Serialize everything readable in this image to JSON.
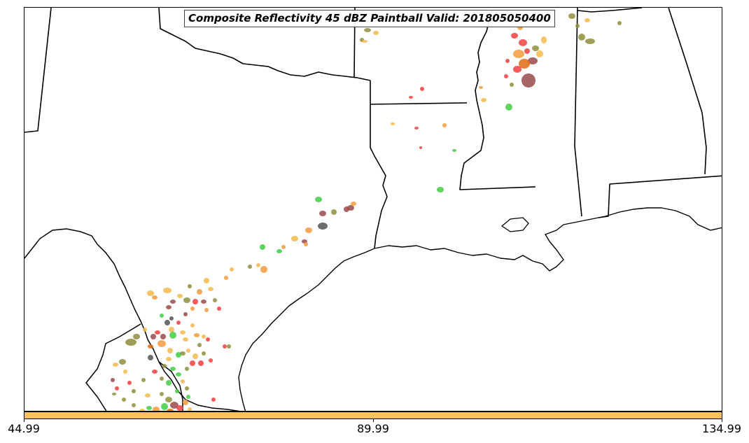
{
  "title": "Composite Reflectivity 45 dBZ Paintball Valid: 201805050400",
  "colorbar": {
    "color": "#FDC15E",
    "ticks": [
      "44.99",
      "89.99",
      "134.99"
    ]
  },
  "palette": {
    "red": "#F04040",
    "orange": "#F49A3C",
    "yellow": "#F5B84C",
    "green": "#44CC44",
    "olive": "#8E8E3C",
    "maroon": "#9A4A4A",
    "gray": "#555555",
    "darkorange": "#E06A10"
  }
}
